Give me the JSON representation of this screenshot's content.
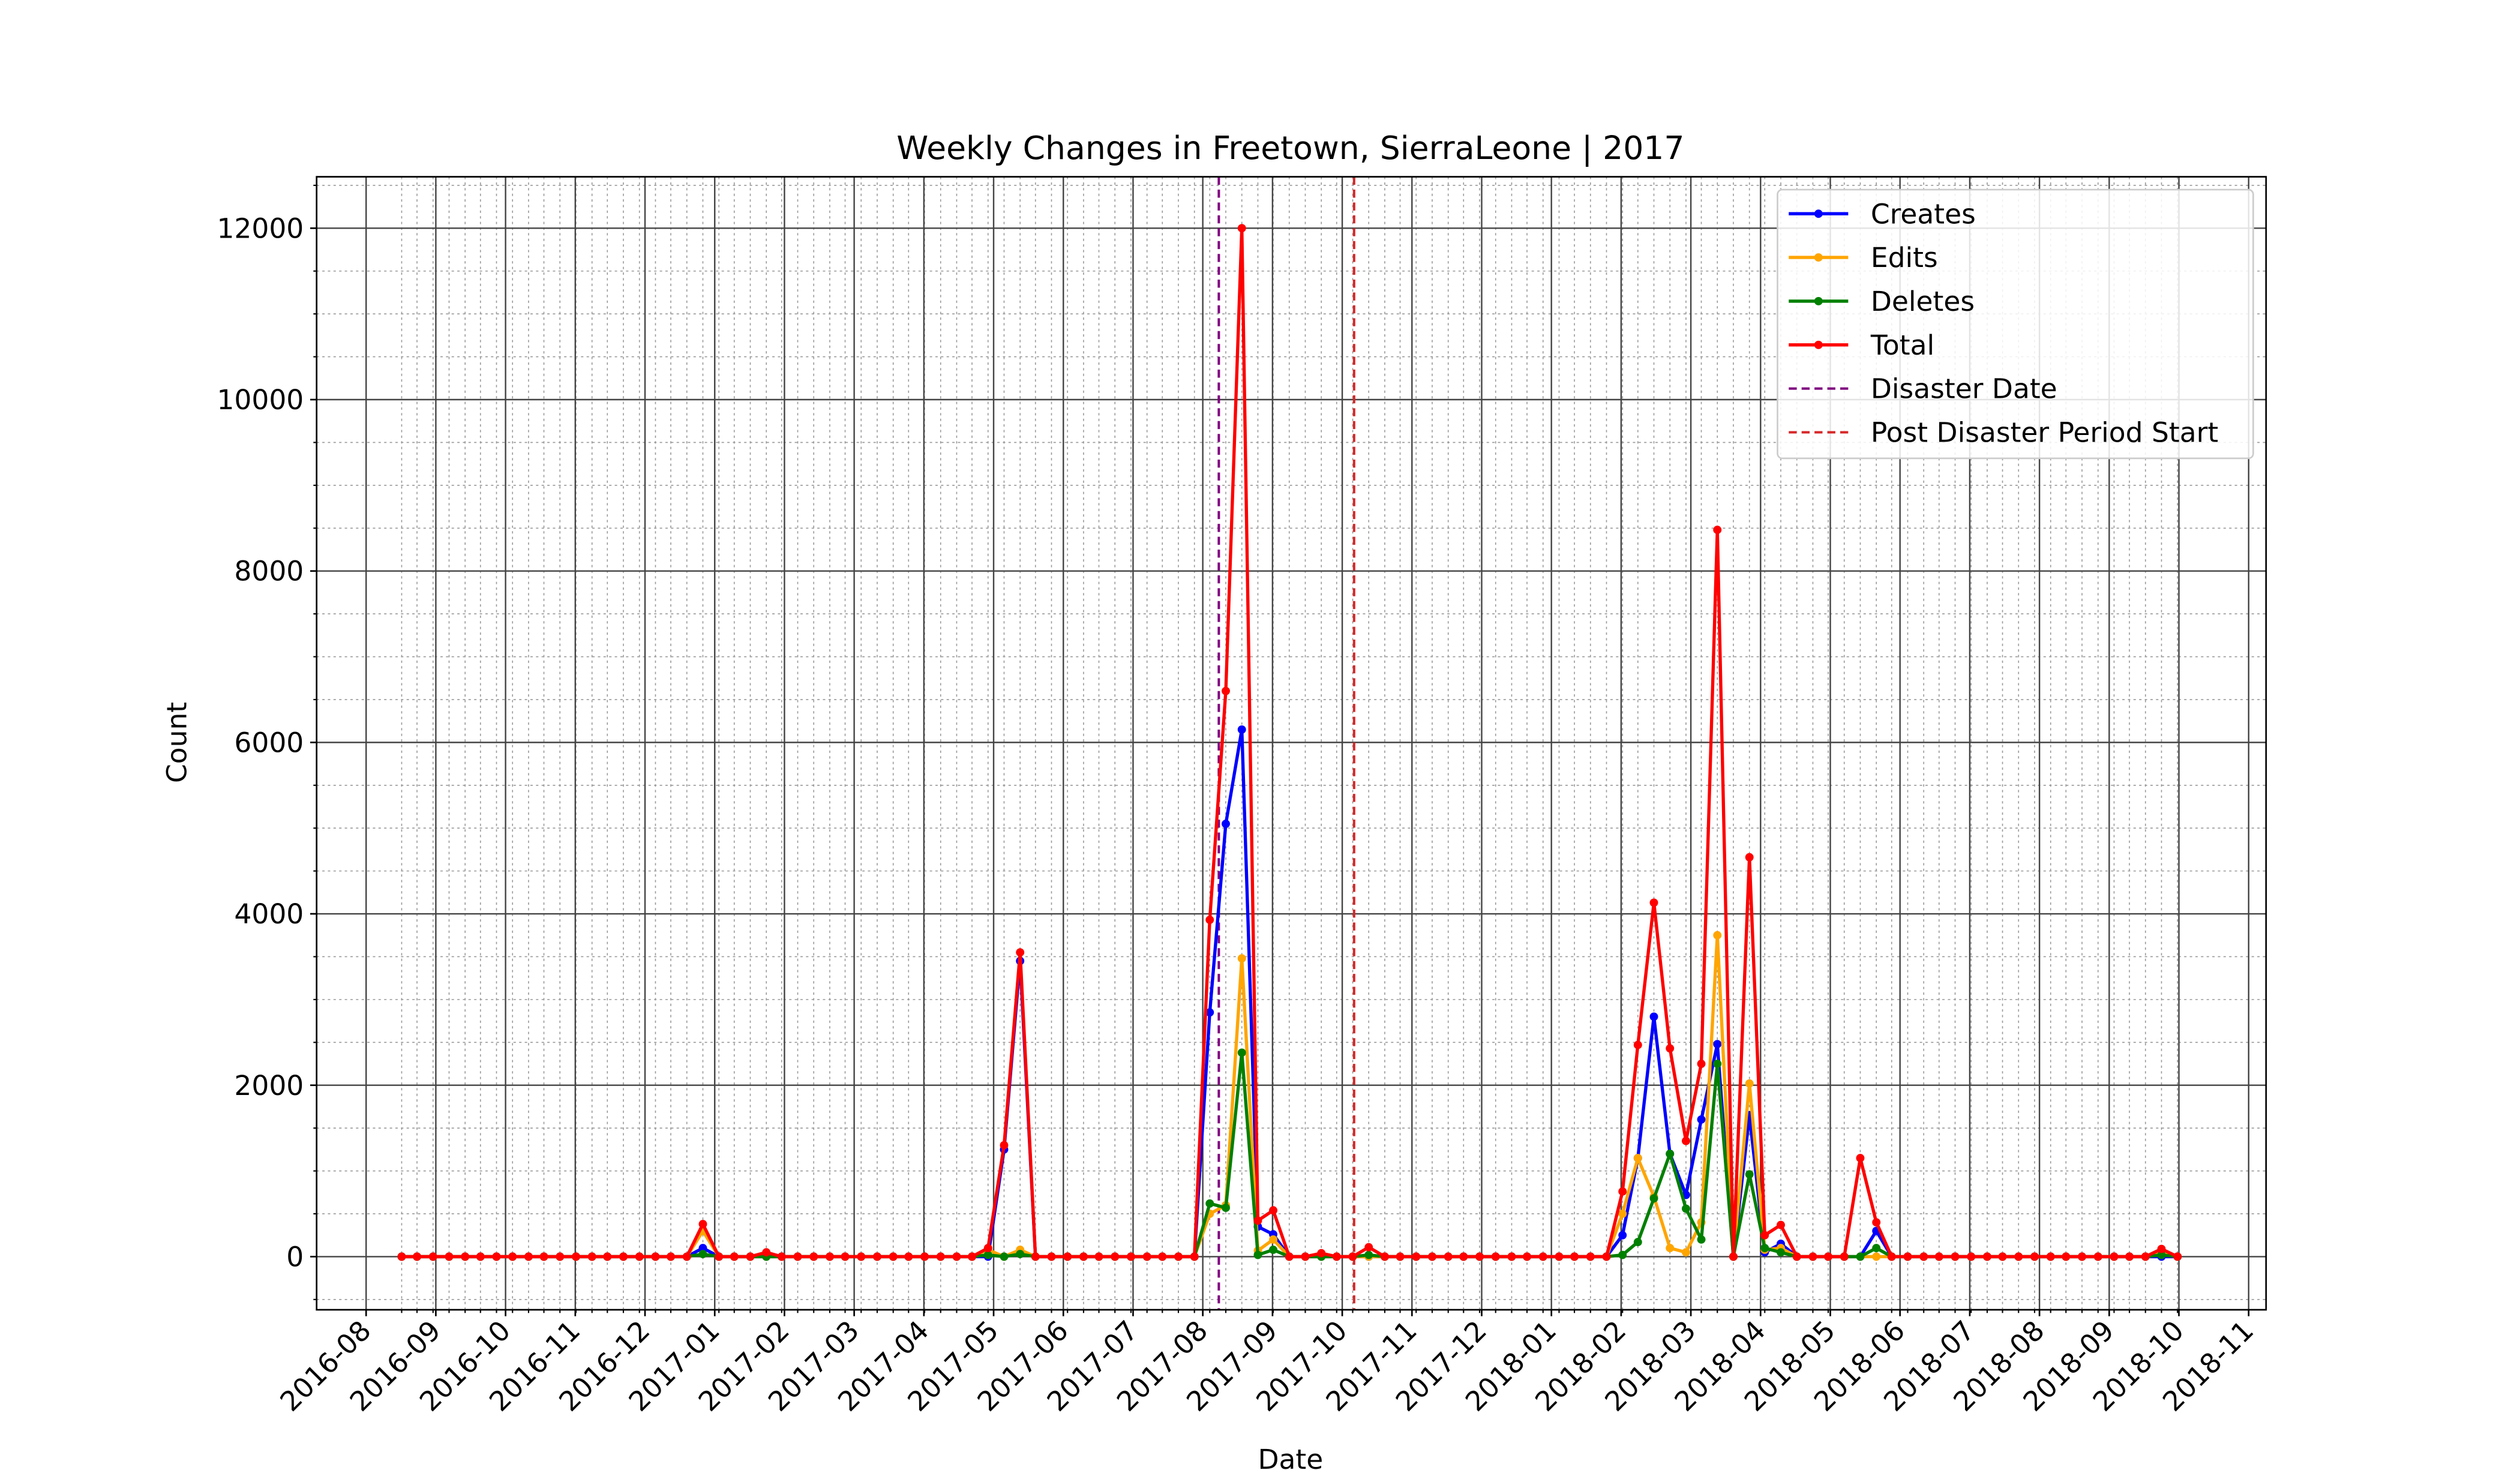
{
  "chart_data": {
    "type": "line",
    "title": "Weekly Changes in Freetown, SierraLeone | 2017",
    "xlabel": "Date",
    "ylabel": "Count",
    "x": [
      0.51,
      0.73,
      0.96,
      1.19,
      1.42,
      1.64,
      1.87,
      2.1,
      2.33,
      2.55,
      2.78,
      3.01,
      3.24,
      3.46,
      3.69,
      3.92,
      4.15,
      4.37,
      4.6,
      4.83,
      5.06,
      5.28,
      5.51,
      5.74,
      5.96,
      6.19,
      6.42,
      6.65,
      6.87,
      7.1,
      7.33,
      7.56,
      7.78,
      8.01,
      8.24,
      8.47,
      8.69,
      8.92,
      9.15,
      9.38,
      9.6,
      9.83,
      10.06,
      10.29,
      10.51,
      10.74,
      10.97,
      11.2,
      11.42,
      11.65,
      11.88,
      12.1,
      12.33,
      12.56,
      12.79,
      13.01,
      13.24,
      13.47,
      13.7,
      13.92,
      14.15,
      14.38,
      14.61,
      14.83,
      15.06,
      15.29,
      15.52,
      15.74,
      15.97,
      16.2,
      16.43,
      16.65,
      16.88,
      17.11,
      17.33,
      17.56,
      17.79,
      18.02,
      18.24,
      18.47,
      18.7,
      18.93,
      19.15,
      19.38,
      19.61,
      19.84,
      20.06,
      20.29,
      20.52,
      20.75,
      20.97,
      21.2,
      21.43,
      21.66,
      21.88,
      22.11,
      22.34,
      22.56,
      22.79,
      23.02,
      23.25,
      23.47,
      23.7,
      23.93,
      24.16,
      24.38,
      24.61,
      24.84,
      25.07,
      25.29,
      25.52,
      25.75,
      25.98
    ],
    "series": [
      {
        "name": "Creates",
        "color": "#0000ff",
        "values": [
          0,
          0,
          0,
          0,
          0,
          0,
          0,
          0,
          0,
          0,
          0,
          0,
          0,
          0,
          0,
          0,
          0,
          0,
          0,
          100,
          0,
          0,
          0,
          0,
          0,
          0,
          0,
          0,
          0,
          0,
          0,
          0,
          0,
          0,
          0,
          0,
          0,
          0,
          1250,
          3450,
          0,
          0,
          0,
          0,
          0,
          0,
          0,
          0,
          0,
          0,
          0,
          2850,
          5050,
          6150,
          350,
          260,
          0,
          0,
          0,
          0,
          0,
          0,
          0,
          0,
          0,
          0,
          0,
          0,
          0,
          0,
          0,
          0,
          0,
          0,
          0,
          0,
          0,
          250,
          1150,
          2800,
          1200,
          720,
          1600,
          2480,
          0,
          1650,
          50,
          150,
          0,
          0,
          0,
          0,
          0,
          300,
          0,
          0,
          0,
          0,
          0,
          0,
          0,
          0,
          0,
          0,
          0,
          0,
          0,
          0,
          0,
          0,
          0,
          0,
          0
        ]
      },
      {
        "name": "Edits",
        "color": "#ffa500",
        "values": [
          0,
          0,
          0,
          0,
          0,
          0,
          0,
          0,
          0,
          0,
          0,
          0,
          0,
          0,
          0,
          0,
          0,
          0,
          0,
          300,
          0,
          0,
          0,
          0,
          0,
          0,
          0,
          0,
          0,
          0,
          0,
          0,
          0,
          0,
          0,
          0,
          0,
          80,
          0,
          80,
          0,
          0,
          0,
          0,
          0,
          0,
          0,
          0,
          0,
          0,
          0,
          500,
          600,
          3480,
          70,
          200,
          0,
          0,
          0,
          0,
          0,
          0,
          0,
          0,
          0,
          0,
          0,
          0,
          0,
          0,
          0,
          0,
          0,
          0,
          0,
          0,
          0,
          500,
          1150,
          700,
          100,
          50,
          400,
          3750,
          0,
          2020,
          80,
          100,
          0,
          0,
          0,
          0,
          0,
          0,
          0,
          0,
          0,
          0,
          0,
          0,
          0,
          0,
          0,
          0,
          0,
          0,
          0,
          0,
          0,
          0,
          0,
          60,
          0
        ]
      },
      {
        "name": "Deletes",
        "color": "#008000",
        "values": [
          0,
          0,
          0,
          0,
          0,
          0,
          0,
          0,
          0,
          0,
          0,
          0,
          0,
          0,
          0,
          0,
          0,
          0,
          0,
          30,
          0,
          0,
          0,
          0,
          0,
          0,
          0,
          0,
          0,
          0,
          0,
          0,
          0,
          0,
          0,
          0,
          0,
          20,
          0,
          30,
          0,
          0,
          0,
          0,
          0,
          0,
          0,
          0,
          0,
          0,
          0,
          620,
          570,
          2380,
          20,
          80,
          0,
          0,
          0,
          0,
          0,
          20,
          0,
          0,
          0,
          0,
          0,
          0,
          0,
          0,
          0,
          0,
          0,
          0,
          0,
          0,
          0,
          20,
          170,
          680,
          1200,
          560,
          200,
          2250,
          0,
          960,
          100,
          50,
          0,
          0,
          0,
          0,
          0,
          100,
          0,
          0,
          0,
          0,
          0,
          0,
          0,
          0,
          0,
          0,
          0,
          0,
          0,
          0,
          0,
          0,
          0,
          20,
          0
        ]
      },
      {
        "name": "Total",
        "color": "#ff0000",
        "values": [
          0,
          0,
          0,
          0,
          0,
          0,
          0,
          0,
          0,
          0,
          0,
          0,
          0,
          0,
          0,
          0,
          0,
          0,
          0,
          380,
          0,
          0,
          0,
          50,
          0,
          0,
          0,
          0,
          0,
          0,
          0,
          0,
          0,
          0,
          0,
          0,
          0,
          100,
          1300,
          3550,
          0,
          0,
          0,
          0,
          0,
          0,
          0,
          0,
          0,
          0,
          0,
          3930,
          6600,
          12000,
          420,
          540,
          0,
          0,
          40,
          0,
          0,
          110,
          0,
          0,
          0,
          0,
          0,
          0,
          0,
          0,
          0,
          0,
          0,
          0,
          0,
          0,
          0,
          760,
          2470,
          4130,
          2430,
          1350,
          2250,
          8480,
          0,
          4660,
          250,
          370,
          0,
          0,
          0,
          0,
          1150,
          400,
          0,
          0,
          0,
          0,
          0,
          0,
          0,
          0,
          0,
          0,
          0,
          0,
          0,
          0,
          0,
          0,
          0,
          90,
          0
        ]
      }
    ],
    "vlines": [
      {
        "name": "Disaster Date",
        "x": 12.23,
        "color": "#800080"
      },
      {
        "name": "Post Disaster Period Start",
        "x": 14.17,
        "color": "#d62728"
      }
    ],
    "xlim": [
      -0.71,
      27.25
    ],
    "xticks": [
      {
        "value": 0,
        "label": "2016-08"
      },
      {
        "value": 1,
        "label": "2016-09"
      },
      {
        "value": 2,
        "label": "2016-10"
      },
      {
        "value": 3,
        "label": "2016-11"
      },
      {
        "value": 4,
        "label": "2016-12"
      },
      {
        "value": 5,
        "label": "2017-01"
      },
      {
        "value": 6,
        "label": "2017-02"
      },
      {
        "value": 7,
        "label": "2017-03"
      },
      {
        "value": 8,
        "label": "2017-04"
      },
      {
        "value": 9,
        "label": "2017-05"
      },
      {
        "value": 10,
        "label": "2017-06"
      },
      {
        "value": 11,
        "label": "2017-07"
      },
      {
        "value": 12,
        "label": "2017-08"
      },
      {
        "value": 13,
        "label": "2017-09"
      },
      {
        "value": 14,
        "label": "2017-10"
      },
      {
        "value": 15,
        "label": "2017-11"
      },
      {
        "value": 16,
        "label": "2017-12"
      },
      {
        "value": 17,
        "label": "2018-01"
      },
      {
        "value": 18,
        "label": "2018-02"
      },
      {
        "value": 19,
        "label": "2018-03"
      },
      {
        "value": 20,
        "label": "2018-04"
      },
      {
        "value": 21,
        "label": "2018-05"
      },
      {
        "value": 22,
        "label": "2018-06"
      },
      {
        "value": 23,
        "label": "2018-07"
      },
      {
        "value": 24,
        "label": "2018-08"
      },
      {
        "value": 25,
        "label": "2018-09"
      },
      {
        "value": 26,
        "label": "2018-10"
      },
      {
        "value": 27,
        "label": "2018-11"
      }
    ],
    "ylim": [
      -620,
      12600
    ],
    "yticks": [
      0,
      2000,
      4000,
      6000,
      8000,
      10000,
      12000
    ],
    "grid": true,
    "minor_grid": true,
    "legend": "upper right"
  }
}
